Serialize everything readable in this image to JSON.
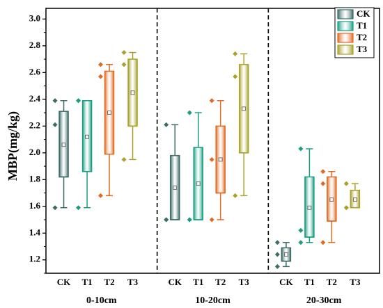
{
  "chart_data": {
    "type": "box",
    "ylabel": "MBP(mg/kg)",
    "ylim": [
      1.1,
      3.08
    ],
    "yticks": [
      1.2,
      1.4,
      1.6,
      1.8,
      2.0,
      2.2,
      2.4,
      2.6,
      2.8,
      3.0
    ],
    "groups": [
      "0-10cm",
      "10-20cm",
      "20-30cm"
    ],
    "categories": [
      "CK",
      "T1",
      "T2",
      "T3"
    ],
    "series": [
      {
        "name": "CK",
        "color": "#3d6b67",
        "data": [
          {
            "group": "0-10cm",
            "q1": 1.82,
            "median": 1.82,
            "q3": 2.31,
            "whisker_low": 1.59,
            "whisker_high": 2.39,
            "mean": 2.06,
            "points": [
              1.59,
              2.21,
              2.39
            ]
          },
          {
            "group": "10-20cm",
            "q1": 1.5,
            "median": 1.5,
            "q3": 1.98,
            "whisker_low": 1.5,
            "whisker_high": 2.21,
            "mean": 1.74,
            "points": [
              1.5,
              1.5,
              2.21
            ]
          },
          {
            "group": "20-30cm",
            "q1": 1.19,
            "median": 1.19,
            "q3": 1.29,
            "whisker_low": 1.15,
            "whisker_high": 1.33,
            "mean": 1.24,
            "points": [
              1.15,
              1.24,
              1.33
            ]
          }
        ]
      },
      {
        "name": "T1",
        "color": "#1a9e82",
        "data": [
          {
            "group": "0-10cm",
            "q1": 1.86,
            "median": 1.86,
            "q3": 2.39,
            "whisker_low": 1.59,
            "whisker_high": 2.39,
            "mean": 2.12,
            "points": [
              1.59,
              2.39,
              2.39
            ]
          },
          {
            "group": "10-20cm",
            "q1": 1.5,
            "median": 1.5,
            "q3": 2.04,
            "whisker_low": 1.5,
            "whisker_high": 2.3,
            "mean": 1.77,
            "points": [
              1.5,
              1.5,
              2.3
            ]
          },
          {
            "group": "20-30cm",
            "q1": 1.37,
            "median": 1.37,
            "q3": 1.82,
            "whisker_low": 1.33,
            "whisker_high": 2.03,
            "mean": 1.59,
            "points": [
              1.33,
              1.42,
              2.03
            ]
          }
        ]
      },
      {
        "name": "T2",
        "color": "#e06a22",
        "data": [
          {
            "group": "0-10cm",
            "q1": 1.99,
            "median": 1.99,
            "q3": 2.61,
            "whisker_low": 1.68,
            "whisker_high": 2.66,
            "mean": 2.3,
            "points": [
              1.68,
              2.57,
              2.66
            ]
          },
          {
            "group": "10-20cm",
            "q1": 1.7,
            "median": 1.7,
            "q3": 2.2,
            "whisker_low": 1.5,
            "whisker_high": 2.39,
            "mean": 1.95,
            "points": [
              1.5,
              1.95,
              2.39
            ]
          },
          {
            "group": "20-30cm",
            "q1": 1.49,
            "median": 1.49,
            "q3": 1.82,
            "whisker_low": 1.33,
            "whisker_high": 1.86,
            "mean": 1.65,
            "points": [
              1.33,
              1.77,
              1.86
            ]
          }
        ]
      },
      {
        "name": "T3",
        "color": "#a8a22a",
        "data": [
          {
            "group": "0-10cm",
            "q1": 2.2,
            "median": 2.2,
            "q3": 2.7,
            "whisker_low": 1.95,
            "whisker_high": 2.75,
            "mean": 2.45,
            "points": [
              1.95,
              2.66,
              2.75
            ]
          },
          {
            "group": "10-20cm",
            "q1": 2.0,
            "median": 2.0,
            "q3": 2.66,
            "whisker_low": 1.68,
            "whisker_high": 2.74,
            "mean": 2.33,
            "points": [
              1.68,
              2.57,
              2.74
            ]
          },
          {
            "group": "20-30cm",
            "q1": 1.59,
            "median": 1.59,
            "q3": 1.72,
            "whisker_low": 1.59,
            "whisker_high": 1.77,
            "mean": 1.65,
            "points": [
              1.59,
              1.59,
              1.77
            ]
          }
        ]
      }
    ],
    "legend": {
      "placement": "top-right",
      "entries": [
        "CK",
        "T1",
        "T2",
        "T3"
      ]
    },
    "grid": false,
    "group_separators": "dashed"
  }
}
